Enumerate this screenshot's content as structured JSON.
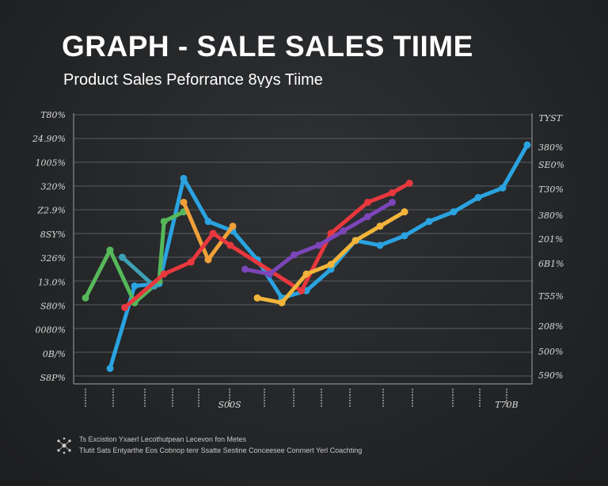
{
  "chart_data": {
    "type": "line",
    "title": "GRAPH - SALE SALES TIIME",
    "subtitle": "Product Sales Peforrance 8ṿys Tiime",
    "y_left_ticks": [
      "T80%",
      "24.90%",
      "1005%",
      "320%",
      "Z2.9%",
      "8SY%",
      "326%",
      "13.0%",
      "S80%",
      "0080%",
      "0B/%",
      "S8P%"
    ],
    "y_right_title": "TYST",
    "y_right_ticks": [
      "380%",
      "SE0%",
      "T30%",
      "380%",
      "201%",
      "6B1%",
      "T55%",
      "208%",
      "500%",
      "590%"
    ],
    "x_ticks": [
      "",
      "",
      "",
      "",
      "",
      "",
      "",
      "",
      "",
      "",
      "",
      "",
      "",
      "",
      ""
    ],
    "x_tick_extra": [
      {
        "index": 5,
        "label": "S00S"
      },
      {
        "index": 14,
        "label": "T70B"
      }
    ],
    "ylim": [
      0,
      100
    ],
    "series": [
      {
        "color": "#2aa3e0",
        "x": [
          1,
          2,
          3,
          4,
          5,
          6,
          7,
          8,
          9,
          10,
          11,
          12,
          13,
          14,
          15,
          16,
          17,
          18
        ],
        "values": [
          0.5,
          35,
          36,
          80,
          62,
          58,
          46,
          30,
          33,
          42,
          54,
          52,
          56,
          62,
          66,
          72,
          76,
          94
        ]
      },
      {
        "color": "#56b85a",
        "x": [
          0,
          1,
          2,
          3,
          3.2,
          4
        ],
        "values": [
          30,
          50,
          28,
          37,
          62,
          66
        ]
      },
      {
        "color": "#3fa0b5",
        "x": [
          1.5,
          2.8
        ],
        "values": [
          47,
          35
        ]
      },
      {
        "color": "#f0a13a",
        "x": [
          4,
          5,
          6
        ],
        "values": [
          70,
          46,
          60
        ]
      },
      {
        "color": "#e8383e",
        "x": [
          1.6,
          3.2,
          4.3,
          5.2,
          5.9,
          8.8,
          10,
          11.5,
          12.5,
          13.2
        ],
        "values": [
          26,
          40,
          45,
          57,
          52,
          33,
          57,
          70,
          74,
          78
        ]
      },
      {
        "color": "#f2b53a",
        "x": [
          7,
          8,
          9,
          10,
          11,
          12,
          13
        ],
        "values": [
          30,
          28,
          40,
          44,
          54,
          60,
          66
        ]
      },
      {
        "color": "#7c45b8",
        "x": [
          6.5,
          7.5,
          8.5,
          9.5,
          10.5,
          11.5,
          12.5
        ],
        "values": [
          42,
          40,
          48,
          52,
          58,
          64,
          70
        ]
      }
    ],
    "annotations": [
      {
        "label": "¢",
        "index": 5
      }
    ]
  },
  "footer": {
    "line1": "Ts Excistion Yxaerl Lecothutpean Lecevon fon Metes",
    "line2": "Tlutit Sats Entyarthe Eos Cobnop tenr Ssatte Sestine Conceesee Conmert Yerl Coachting"
  }
}
